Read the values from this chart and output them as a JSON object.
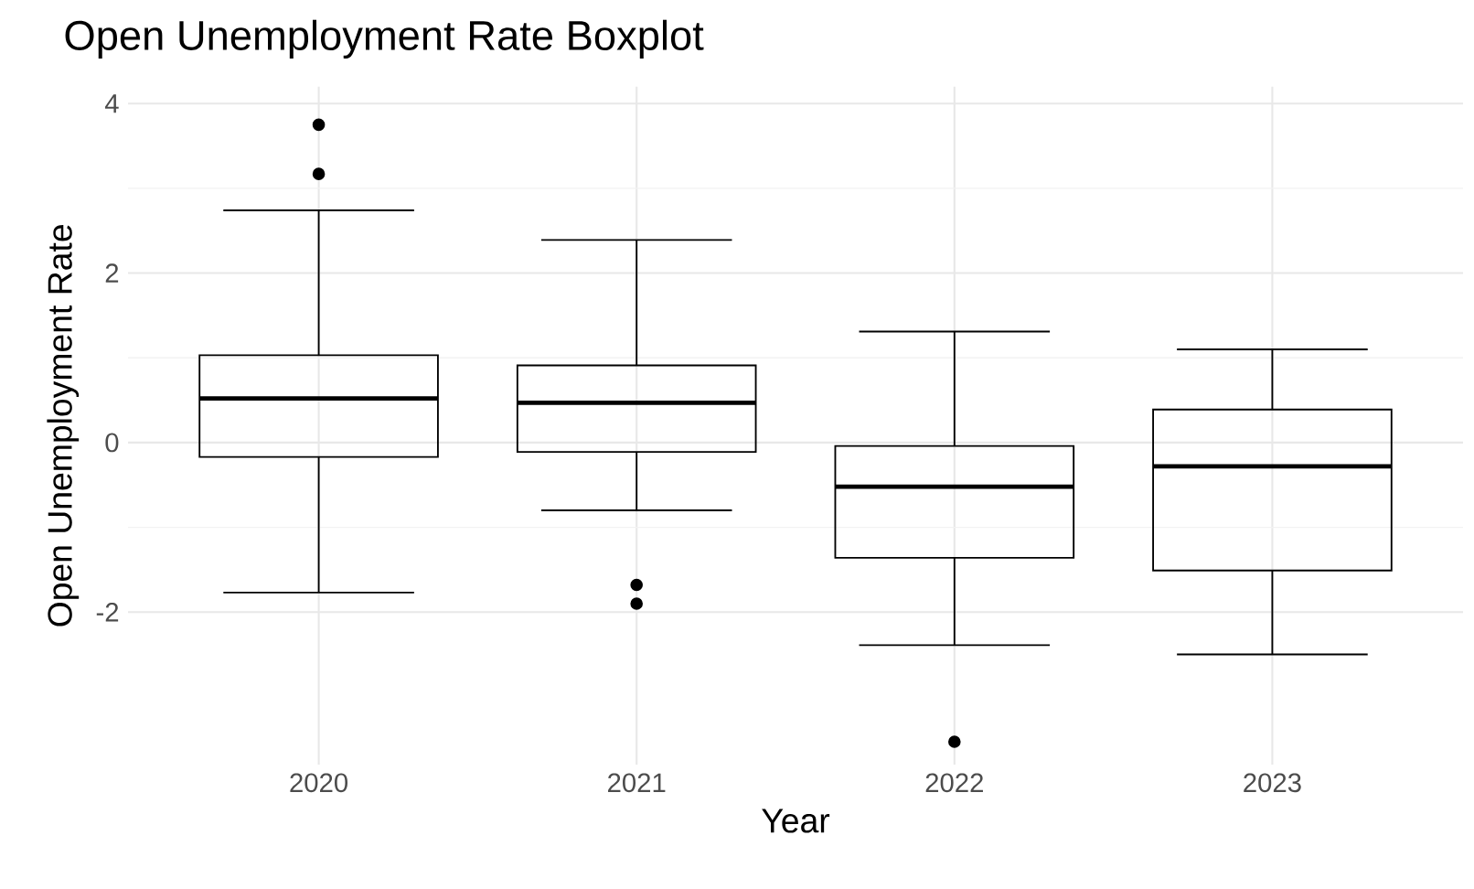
{
  "chart_data": {
    "type": "box",
    "title": "Open Unemployment Rate Boxplot",
    "xlabel": "Year",
    "ylabel": "Open Unemployment Rate",
    "categories": [
      "2020",
      "2021",
      "2022",
      "2023"
    ],
    "boxes": [
      {
        "low": -1.77,
        "q1": -0.17,
        "median": 0.52,
        "q3": 1.03,
        "high": 2.74,
        "outliers": [
          3.75,
          3.17
        ]
      },
      {
        "low": -0.8,
        "q1": -0.11,
        "median": 0.47,
        "q3": 0.91,
        "high": 2.39,
        "outliers": [
          -1.68,
          -1.9
        ]
      },
      {
        "low": -2.39,
        "q1": -1.36,
        "median": -0.52,
        "q3": -0.04,
        "high": 1.31,
        "outliers": [
          -3.53
        ]
      },
      {
        "low": -2.5,
        "q1": -1.51,
        "median": -0.28,
        "q3": 0.39,
        "high": 1.1
      }
    ],
    "ylim": [
      -3.8,
      4.2
    ],
    "yticks": [
      -2,
      0,
      2,
      4
    ],
    "grid": true,
    "color": "#000000"
  }
}
